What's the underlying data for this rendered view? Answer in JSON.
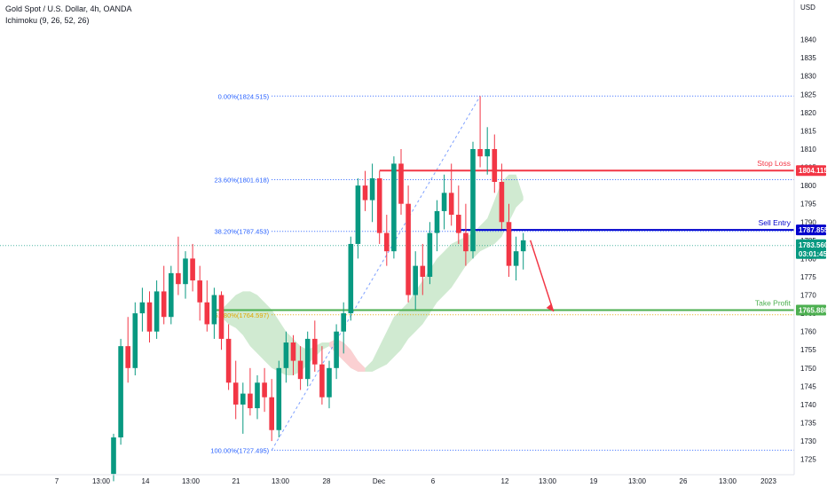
{
  "header": {
    "symbol": "Gold Spot / U.S. Dollar, 4h, OANDA",
    "indicator": "Ichimoku (9, 26, 52, 26)"
  },
  "currency": "USD",
  "chart_data": {
    "type": "candlestick",
    "title": "Gold Spot / U.S. Dollar, 4h, OANDA",
    "ylim": [
      1721,
      1846
    ],
    "y_ticks": [
      1725,
      1730,
      1735,
      1740,
      1745,
      1750,
      1755,
      1760,
      1765,
      1770,
      1775,
      1780,
      1785,
      1790,
      1795,
      1800,
      1805,
      1810,
      1815,
      1820,
      1825,
      1830,
      1835,
      1840
    ],
    "x_labels": [
      "7",
      "13:00",
      "14",
      "13:00",
      "21",
      "13:00",
      "28",
      "Dec",
      "6",
      "12",
      "13:00",
      "19",
      "13:00",
      "26",
      "13:00",
      "2023"
    ],
    "levels": [
      {
        "label": "Stop Loss",
        "value": "1804.115",
        "color": "#f23645"
      },
      {
        "label": "Sell Entry",
        "value": "1787.855",
        "color": "#0000cc"
      },
      {
        "label": "Take Profit",
        "value": "1765.886",
        "color": "#4caf50"
      }
    ],
    "current_price": "1783.560",
    "countdown": "03:01:45",
    "fibonacci": [
      {
        "label": "0.00%(1824.515)",
        "value": 1824.515,
        "color": "#2962ff"
      },
      {
        "label": "23.60%(1801.618)",
        "value": 1801.618,
        "color": "#2962ff"
      },
      {
        "label": "38.20%(1787.453)",
        "value": 1787.453,
        "color": "#2962ff"
      },
      {
        "label": "61.80%(1764.597)",
        "value": 1764.597,
        "color": "#e0a800"
      },
      {
        "label": "100.00%(1727.495)",
        "value": 1727.495,
        "color": "#2962ff"
      }
    ],
    "colors": {
      "up": "#089981",
      "down": "#f23645",
      "cloud_bull": "#c8e6c9",
      "cloud_bear": "#ffcdd2",
      "arrow": "#f23645"
    },
    "candles": [
      [
        1721,
        1732,
        1719,
        1731
      ],
      [
        1731,
        1758,
        1729,
        1756
      ],
      [
        1756,
        1764,
        1746,
        1750
      ],
      [
        1750,
        1768,
        1748,
        1765
      ],
      [
        1765,
        1772,
        1760,
        1768
      ],
      [
        1768,
        1771,
        1757,
        1760
      ],
      [
        1760,
        1774,
        1758,
        1771
      ],
      [
        1771,
        1778,
        1762,
        1764
      ],
      [
        1764,
        1778,
        1762,
        1776
      ],
      [
        1776,
        1786,
        1770,
        1773
      ],
      [
        1773,
        1782,
        1769,
        1780
      ],
      [
        1780,
        1784,
        1771,
        1774
      ],
      [
        1774,
        1778,
        1763,
        1768
      ],
      [
        1768,
        1774,
        1760,
        1762
      ],
      [
        1762,
        1772,
        1758,
        1770
      ],
      [
        1770,
        1771,
        1755,
        1758
      ],
      [
        1758,
        1762,
        1744,
        1746
      ],
      [
        1746,
        1752,
        1736,
        1740
      ],
      [
        1740,
        1746,
        1732,
        1743
      ],
      [
        1743,
        1750,
        1737,
        1739
      ],
      [
        1739,
        1748,
        1736,
        1746
      ],
      [
        1746,
        1750,
        1738,
        1742
      ],
      [
        1742,
        1747,
        1730,
        1733
      ],
      [
        1733,
        1752,
        1731,
        1750
      ],
      [
        1750,
        1760,
        1746,
        1757
      ],
      [
        1757,
        1759,
        1748,
        1752
      ],
      [
        1752,
        1756,
        1744,
        1747
      ],
      [
        1747,
        1760,
        1745,
        1758
      ],
      [
        1758,
        1763,
        1749,
        1751
      ],
      [
        1751,
        1756,
        1740,
        1742
      ],
      [
        1742,
        1752,
        1739,
        1750
      ],
      [
        1750,
        1762,
        1747,
        1760
      ],
      [
        1760,
        1768,
        1754,
        1765
      ],
      [
        1765,
        1786,
        1763,
        1784
      ],
      [
        1784,
        1802,
        1780,
        1800
      ],
      [
        1800,
        1804,
        1793,
        1796
      ],
      [
        1796,
        1806,
        1790,
        1802
      ],
      [
        1802,
        1804,
        1784,
        1787
      ],
      [
        1787,
        1792,
        1778,
        1782
      ],
      [
        1782,
        1808,
        1780,
        1806
      ],
      [
        1806,
        1810,
        1792,
        1795
      ],
      [
        1795,
        1800,
        1768,
        1770
      ],
      [
        1770,
        1782,
        1766,
        1778
      ],
      [
        1778,
        1784,
        1770,
        1775
      ],
      [
        1775,
        1790,
        1773,
        1787
      ],
      [
        1787,
        1796,
        1782,
        1793
      ],
      [
        1793,
        1803,
        1788,
        1798
      ],
      [
        1798,
        1806,
        1789,
        1792
      ],
      [
        1792,
        1800,
        1784,
        1787
      ],
      [
        1787,
        1795,
        1778,
        1782
      ],
      [
        1782,
        1812,
        1780,
        1810
      ],
      [
        1810,
        1824.5,
        1805,
        1808
      ],
      [
        1808,
        1816,
        1803,
        1810
      ],
      [
        1810,
        1814,
        1798,
        1801
      ],
      [
        1801,
        1806,
        1788,
        1790
      ],
      [
        1790,
        1795,
        1775,
        1778
      ],
      [
        1778,
        1786,
        1774,
        1782
      ],
      [
        1782,
        1787,
        1777,
        1785
      ]
    ],
    "cloud": [
      [
        1766,
        1764
      ],
      [
        1768,
        1762
      ],
      [
        1770,
        1761
      ],
      [
        1771,
        1759
      ],
      [
        1771,
        1756
      ],
      [
        1770,
        1754
      ],
      [
        1768,
        1752
      ],
      [
        1766,
        1750
      ],
      [
        1763,
        1749
      ],
      [
        1760,
        1748
      ],
      [
        1758,
        1748
      ],
      [
        1756,
        1749
      ],
      [
        1755,
        1751
      ],
      [
        1756,
        1753
      ],
      [
        1757,
        1755
      ],
      [
        1756,
        1757
      ],
      [
        1754,
        1758
      ],
      [
        1752,
        1757
      ],
      [
        1750,
        1755
      ],
      [
        1749,
        1752
      ],
      [
        1749,
        1750
      ],
      [
        1752,
        1749
      ],
      [
        1756,
        1750
      ],
      [
        1760,
        1751
      ],
      [
        1764,
        1753
      ],
      [
        1766,
        1755
      ],
      [
        1768,
        1758
      ],
      [
        1771,
        1760
      ],
      [
        1774,
        1762
      ],
      [
        1777,
        1765
      ],
      [
        1780,
        1768
      ],
      [
        1782,
        1770
      ],
      [
        1784,
        1772
      ],
      [
        1785,
        1775
      ],
      [
        1786,
        1778
      ],
      [
        1787,
        1780
      ],
      [
        1789,
        1782
      ],
      [
        1791,
        1783
      ],
      [
        1796,
        1784
      ],
      [
        1801,
        1786
      ],
      [
        1803,
        1790
      ],
      [
        1803,
        1794
      ],
      [
        1797,
        1796
      ]
    ]
  }
}
